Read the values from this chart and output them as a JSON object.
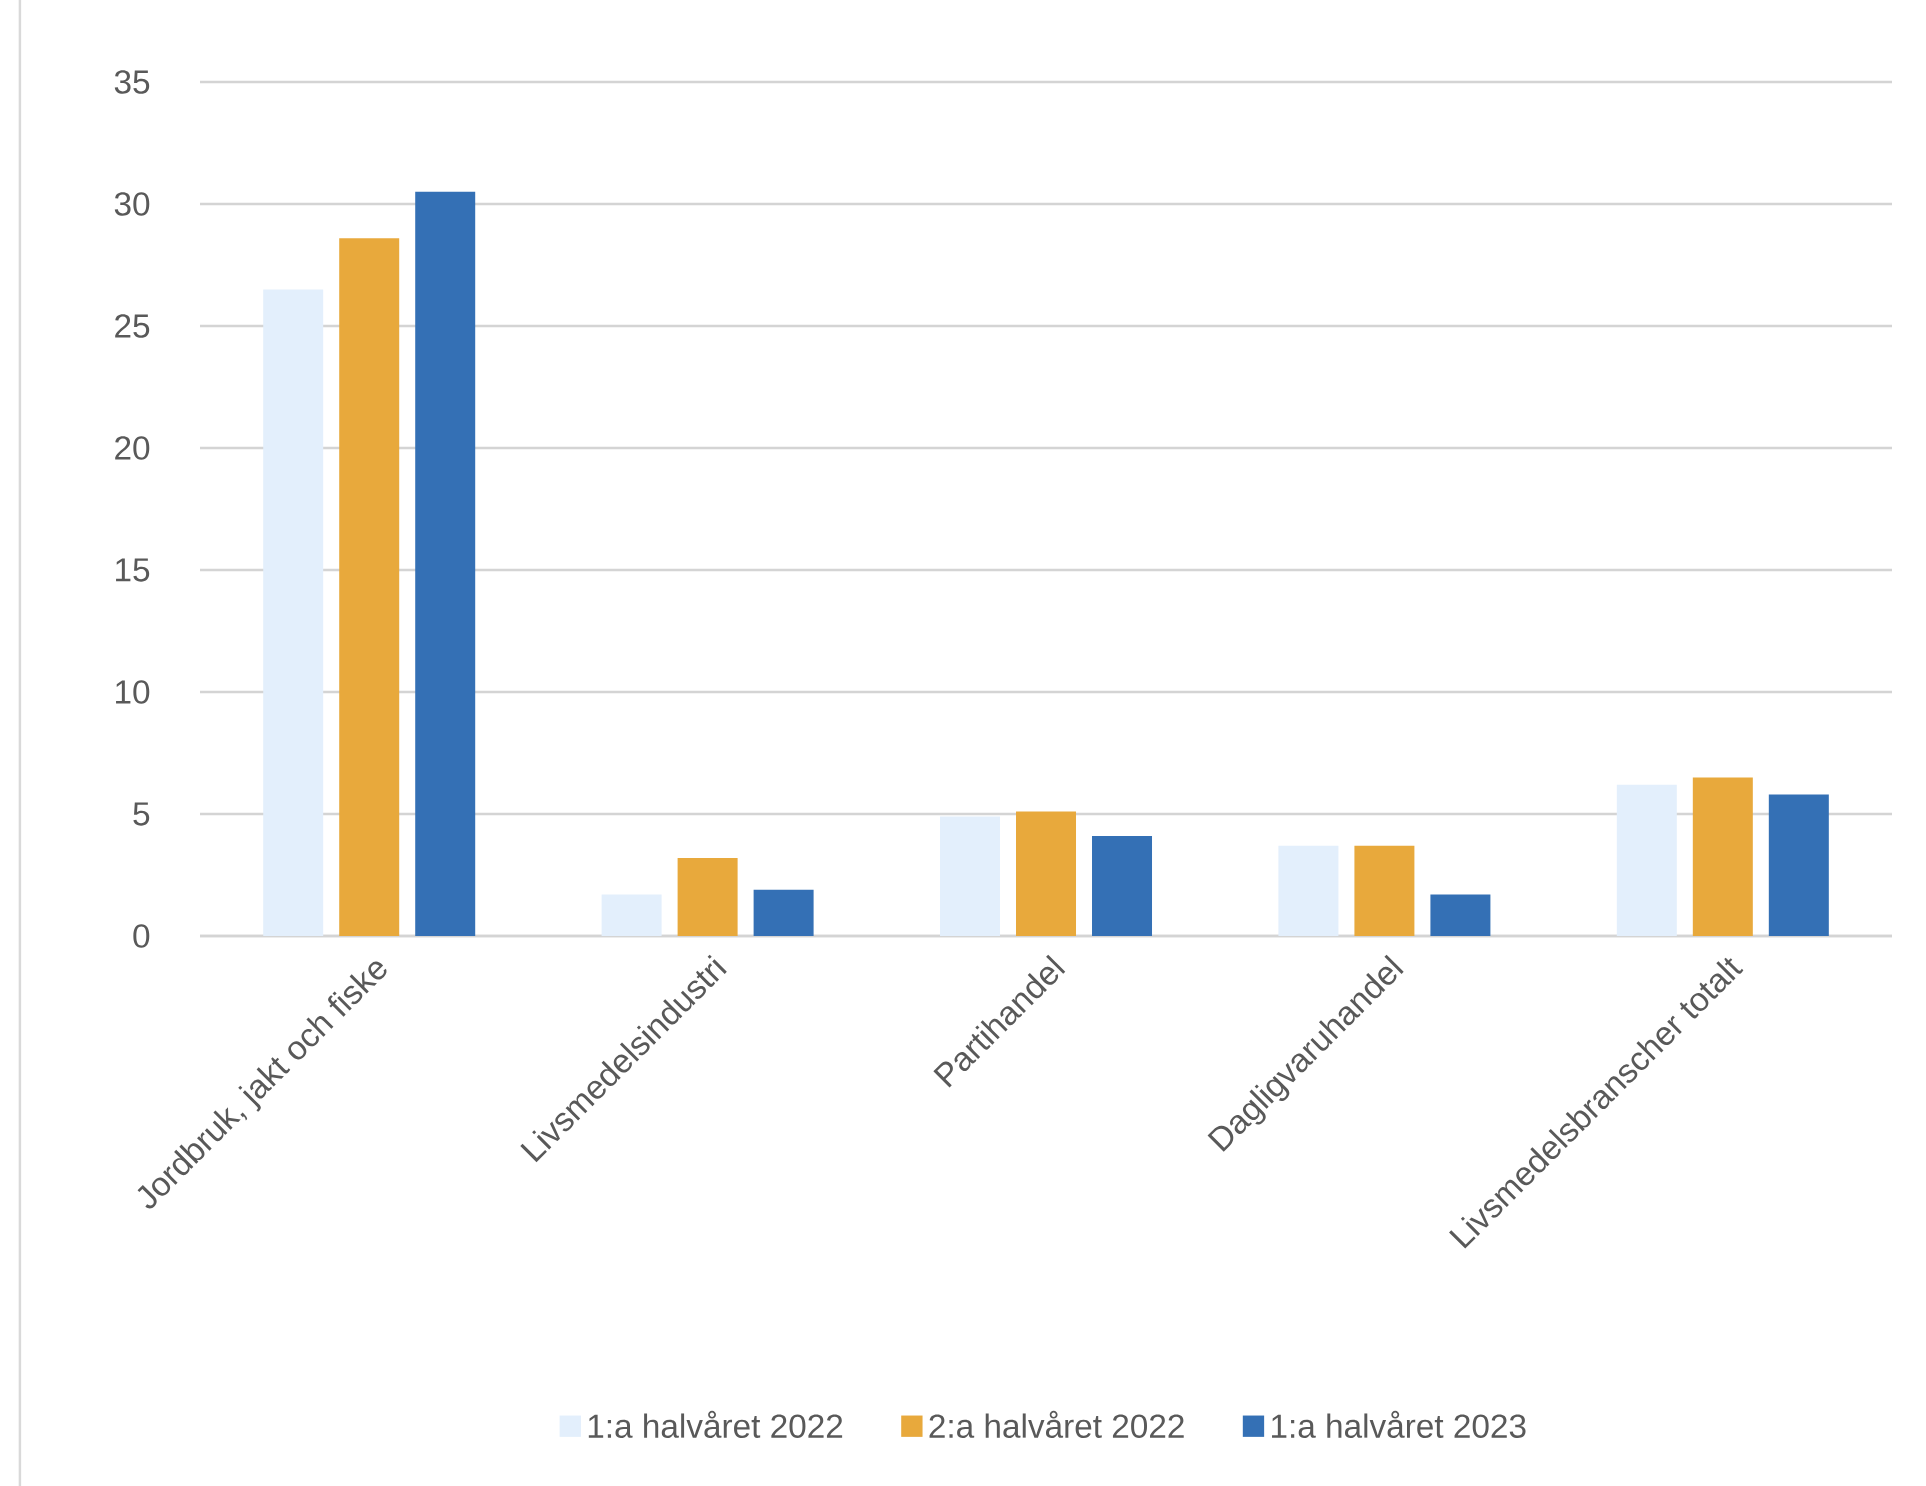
{
  "chart_data": {
    "type": "bar",
    "categories": [
      "Jordbruk, jakt och fiske",
      "Livsmedelsindustri",
      "Partihandel",
      "Dagligvaruhandel",
      "Livsmedelsbranscher totalt"
    ],
    "series": [
      {
        "name": "1:a halvåret 2022",
        "color": "#e3effc",
        "values": [
          26.5,
          1.7,
          4.9,
          3.7,
          6.2
        ]
      },
      {
        "name": "2:a halvåret 2022",
        "color": "#e8a93c",
        "values": [
          28.6,
          3.2,
          5.1,
          3.7,
          6.5
        ]
      },
      {
        "name": "1:a halvåret 2023",
        "color": "#3470b5",
        "values": [
          30.5,
          1.9,
          4.1,
          1.7,
          5.8
        ]
      }
    ],
    "ylim": [
      0,
      35
    ],
    "yticks": [
      0,
      5,
      10,
      15,
      20,
      25,
      30,
      35
    ],
    "grid": "y",
    "legend": "bottom"
  }
}
